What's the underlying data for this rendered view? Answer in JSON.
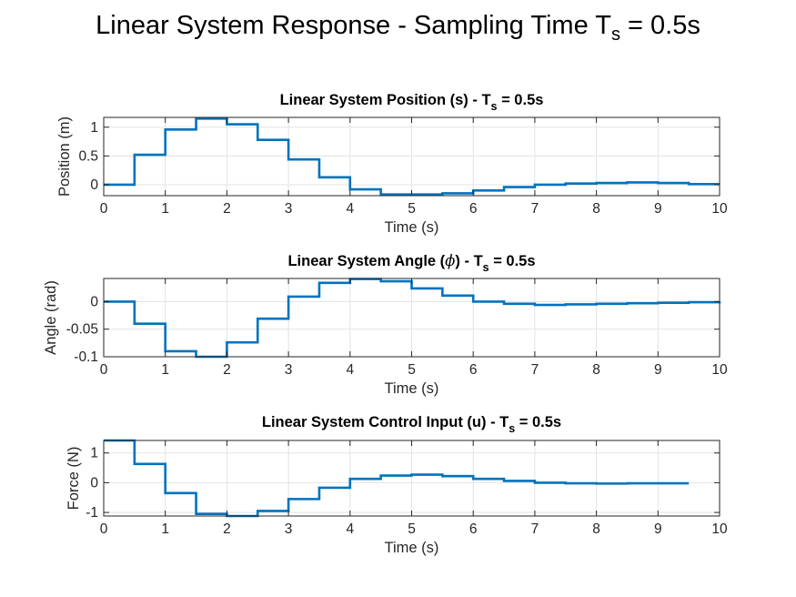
{
  "figure": {
    "title": "Linear System Response - Sampling Time T",
    "title_sub": "s",
    "title_suffix": " = 0.5s"
  },
  "colors": {
    "line": "#0072BD",
    "grid": "#e3e3e3",
    "axis": "#262626",
    "background": "#ffffff"
  },
  "chart_data": [
    {
      "type": "line",
      "style": "stairs",
      "title": "Linear System Position (s) - T",
      "title_sub": "s",
      "title_suffix": " = 0.5s",
      "xlabel": "Time (s)",
      "ylabel": "Position (m)",
      "xlim": [
        0,
        10
      ],
      "ylim": [
        -0.19,
        1.17
      ],
      "xticks": [
        0,
        1,
        2,
        3,
        4,
        5,
        6,
        7,
        8,
        9,
        10
      ],
      "xtick_labels": [
        "0",
        "1",
        "2",
        "3",
        "4",
        "5",
        "6",
        "7",
        "8",
        "9",
        "10"
      ],
      "yticks": [
        0,
        0.5,
        1
      ],
      "ytick_labels": [
        "0",
        "0.5",
        "1"
      ],
      "grid": true,
      "x": [
        0,
        0.5,
        1,
        1.5,
        2,
        2.5,
        3,
        3.5,
        4,
        4.5,
        5,
        5.5,
        6,
        6.5,
        7,
        7.5,
        8,
        8.5,
        9,
        9.5,
        10
      ],
      "y": [
        0.0,
        0.52,
        0.96,
        1.15,
        1.05,
        0.78,
        0.44,
        0.13,
        -0.08,
        -0.17,
        -0.17,
        -0.15,
        -0.1,
        -0.04,
        0.0,
        0.02,
        0.03,
        0.04,
        0.03,
        0.01,
        0.01
      ]
    },
    {
      "type": "line",
      "style": "stairs",
      "title": "Linear System Angle (",
      "title_symbol": "ϕ",
      "title_mid": ") - T",
      "title_sub": "s",
      "title_suffix": " = 0.5s",
      "xlabel": "Time (s)",
      "ylabel": "Angle (rad)",
      "xlim": [
        0,
        10
      ],
      "ylim": [
        -0.1,
        0.042
      ],
      "xticks": [
        0,
        1,
        2,
        3,
        4,
        5,
        6,
        7,
        8,
        9,
        10
      ],
      "xtick_labels": [
        "0",
        "1",
        "2",
        "3",
        "4",
        "5",
        "6",
        "7",
        "8",
        "9",
        "10"
      ],
      "yticks": [
        -0.1,
        -0.05,
        0
      ],
      "ytick_labels": [
        "-0.1",
        "-0.05",
        "0"
      ],
      "grid": true,
      "x": [
        0,
        0.5,
        1,
        1.5,
        2,
        2.5,
        3,
        3.5,
        4,
        4.5,
        5,
        5.5,
        6,
        6.5,
        7,
        7.5,
        8,
        8.5,
        9,
        9.5,
        10
      ],
      "y": [
        0.0,
        -0.04,
        -0.09,
        -0.1,
        -0.074,
        -0.031,
        0.009,
        0.034,
        0.041,
        0.037,
        0.024,
        0.011,
        0.0,
        -0.004,
        -0.006,
        -0.005,
        -0.004,
        -0.003,
        -0.002,
        -0.001,
        0.0
      ]
    },
    {
      "type": "line",
      "style": "stairs",
      "title": "Linear System Control Input (u) - T",
      "title_sub": "s",
      "title_suffix": " = 0.5s",
      "xlabel": "Time (s)",
      "ylabel": "Force (N)",
      "xlim": [
        0,
        10
      ],
      "ylim": [
        -1.12,
        1.42
      ],
      "xticks": [
        0,
        1,
        2,
        3,
        4,
        5,
        6,
        7,
        8,
        9,
        10
      ],
      "xtick_labels": [
        "0",
        "1",
        "2",
        "3",
        "4",
        "5",
        "6",
        "7",
        "8",
        "9",
        "10"
      ],
      "yticks": [
        -1,
        0,
        1
      ],
      "ytick_labels": [
        "-1",
        "0",
        "1"
      ],
      "grid": true,
      "x": [
        0,
        0.5,
        1,
        1.5,
        2,
        2.5,
        3,
        3.5,
        4,
        4.5,
        5,
        5.5,
        6,
        6.5,
        7,
        7.5,
        8,
        8.5,
        9,
        9.5
      ],
      "y": [
        1.42,
        0.63,
        -0.35,
        -1.05,
        -1.12,
        -0.95,
        -0.55,
        -0.17,
        0.13,
        0.24,
        0.27,
        0.22,
        0.13,
        0.06,
        0.0,
        -0.02,
        -0.03,
        -0.02,
        -0.02,
        -0.02
      ]
    }
  ]
}
